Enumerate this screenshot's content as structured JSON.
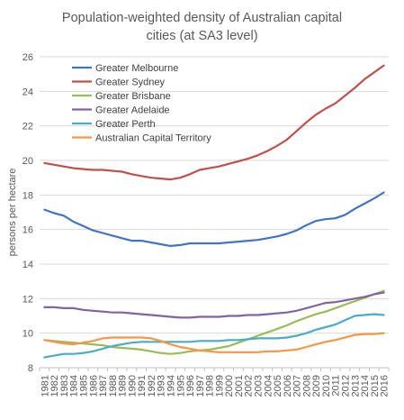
{
  "chart_data": {
    "type": "line",
    "title_lines": [
      "Population-weighted density of Australian capital",
      "cities (at SA3 level)"
    ],
    "xlabel": "",
    "ylabel": "persons per hectare",
    "ylim": [
      8,
      26
    ],
    "yticks": [
      8,
      10,
      12,
      14,
      16,
      18,
      20,
      22,
      24,
      26
    ],
    "grid": "horizontal",
    "legend_position": "top-left",
    "x": [
      1981,
      1982,
      1983,
      1984,
      1985,
      1986,
      1987,
      1988,
      1989,
      1990,
      1991,
      1992,
      1993,
      1994,
      1995,
      1996,
      1997,
      1998,
      1999,
      2000,
      2001,
      2002,
      2003,
      2004,
      2005,
      2006,
      2007,
      2008,
      2009,
      2010,
      2011,
      2012,
      2013,
      2014,
      2015,
      2016
    ],
    "x_tick_labels": [
      "1981",
      "1982",
      "1983",
      "1984",
      "1985",
      "1986",
      "1987",
      "1988",
      "1989",
      "1990",
      "1991",
      "1992",
      "1993",
      "1994",
      "1995",
      "1996",
      "1997",
      "1998",
      "1999",
      "2000",
      "2001",
      "2002",
      "2003",
      "2004",
      "2005",
      "2006",
      "2007",
      "2008",
      "2009",
      "2010",
      "2011",
      "2012",
      "2013",
      "2014",
      "2015",
      "2016"
    ],
    "series": [
      {
        "name": "Greater Melbourne",
        "color": "#4472c4",
        "values": [
          17.15,
          16.95,
          16.8,
          16.45,
          16.2,
          15.95,
          15.8,
          15.65,
          15.5,
          15.35,
          15.35,
          15.25,
          15.15,
          15.05,
          15.1,
          15.2,
          15.2,
          15.2,
          15.2,
          15.25,
          15.3,
          15.35,
          15.4,
          15.5,
          15.6,
          15.75,
          15.95,
          16.25,
          16.5,
          16.6,
          16.65,
          16.85,
          17.2,
          17.5,
          17.8,
          18.15
        ]
      },
      {
        "name": "Greater Sydney",
        "color": "#c0504d",
        "values": [
          19.85,
          19.75,
          19.65,
          19.55,
          19.5,
          19.45,
          19.45,
          19.4,
          19.35,
          19.2,
          19.1,
          19.0,
          18.95,
          18.9,
          19.0,
          19.2,
          19.45,
          19.55,
          19.65,
          19.8,
          19.95,
          20.1,
          20.3,
          20.55,
          20.85,
          21.2,
          21.7,
          22.2,
          22.65,
          23.0,
          23.3,
          23.75,
          24.2,
          24.7,
          25.1,
          25.5
        ]
      },
      {
        "name": "Greater Brisbane",
        "color": "#9bbb59",
        "values": [
          9.6,
          9.55,
          9.5,
          9.45,
          9.4,
          9.35,
          9.3,
          9.2,
          9.15,
          9.1,
          9.05,
          8.95,
          8.85,
          8.8,
          8.85,
          8.95,
          9.0,
          9.05,
          9.15,
          9.25,
          9.45,
          9.65,
          9.85,
          10.05,
          10.25,
          10.45,
          10.7,
          10.9,
          11.1,
          11.25,
          11.45,
          11.65,
          11.85,
          12.05,
          12.25,
          12.45
        ]
      },
      {
        "name": "Greater Adelaide",
        "color": "#8064a2",
        "values": [
          11.5,
          11.5,
          11.45,
          11.45,
          11.35,
          11.3,
          11.25,
          11.2,
          11.2,
          11.15,
          11.1,
          11.05,
          11.0,
          10.95,
          10.9,
          10.9,
          10.95,
          10.95,
          10.95,
          11.0,
          11.0,
          11.05,
          11.05,
          11.1,
          11.15,
          11.2,
          11.3,
          11.45,
          11.6,
          11.75,
          11.8,
          11.9,
          12.0,
          12.1,
          12.25,
          12.35
        ]
      },
      {
        "name": "Greater Perth",
        "color": "#4bacc6",
        "values": [
          8.6,
          8.7,
          8.8,
          8.8,
          8.85,
          8.95,
          9.1,
          9.25,
          9.35,
          9.45,
          9.5,
          9.5,
          9.5,
          9.5,
          9.5,
          9.5,
          9.55,
          9.55,
          9.55,
          9.6,
          9.6,
          9.65,
          9.7,
          9.7,
          9.7,
          9.75,
          9.85,
          10.0,
          10.2,
          10.35,
          10.5,
          10.75,
          11.0,
          11.05,
          11.1,
          11.05
        ]
      },
      {
        "name": "Australian Capital Territory",
        "color": "#f79646",
        "values": [
          9.6,
          9.5,
          9.4,
          9.35,
          9.45,
          9.55,
          9.7,
          9.75,
          9.75,
          9.75,
          9.75,
          9.7,
          9.55,
          9.35,
          9.2,
          9.1,
          9.0,
          8.95,
          8.9,
          8.9,
          8.9,
          8.9,
          8.9,
          8.95,
          8.95,
          9.0,
          9.05,
          9.2,
          9.35,
          9.5,
          9.6,
          9.75,
          9.9,
          9.95,
          9.95,
          10.0
        ]
      }
    ]
  }
}
